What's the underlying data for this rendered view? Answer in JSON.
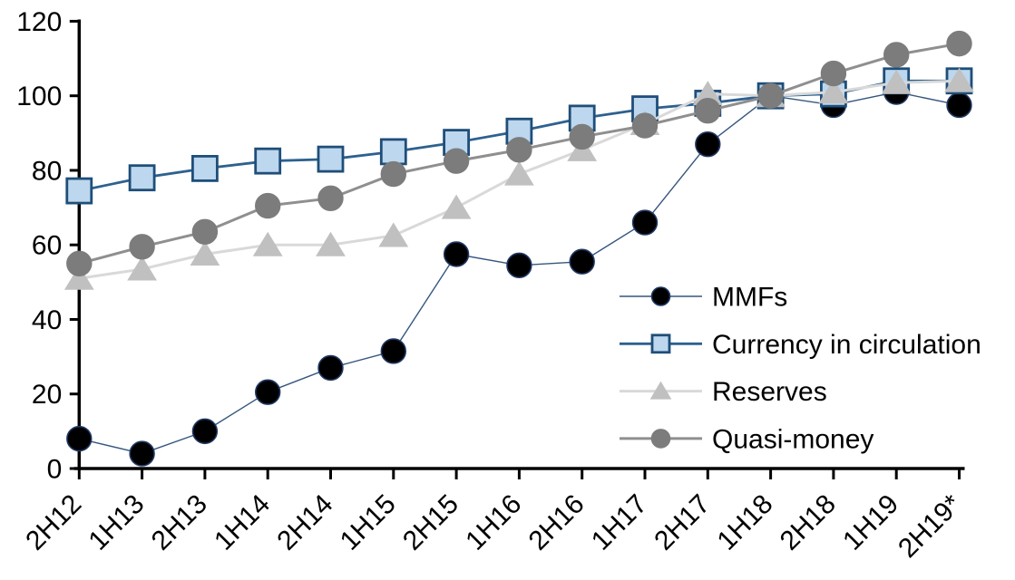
{
  "chart_data": {
    "type": "line",
    "title": "",
    "xlabel": "",
    "ylabel": "",
    "grid": false,
    "ylim": [
      0,
      120
    ],
    "yticks": [
      0,
      20,
      40,
      60,
      80,
      100,
      120
    ],
    "ytick_labels": [
      "0",
      "20",
      "40",
      "60",
      "80",
      "100",
      "120"
    ],
    "categories": [
      "2H12",
      "1H13",
      "2H13",
      "1H14",
      "2H14",
      "1H15",
      "2H15",
      "1H16",
      "2H16",
      "1H17",
      "2H17",
      "1H18",
      "2H18",
      "1H19",
      "2H19*"
    ],
    "legend_position": "inside-center-right",
    "axis_color": "#000000",
    "background_color": "#ffffff",
    "series": [
      {
        "name": "MMFs",
        "marker": "circle",
        "marker_fill": "#000000",
        "marker_stroke": "#1F3864",
        "line_color": "#35567E",
        "line_width": 1.4,
        "values": [
          8,
          4,
          10,
          20.5,
          27,
          31.5,
          57.5,
          54.5,
          55.5,
          66,
          87,
          100,
          97.5,
          101,
          97.5
        ]
      },
      {
        "name": "Currency in circulation",
        "marker": "square",
        "marker_fill": "#BDD7EE",
        "marker_stroke": "#1F4E79",
        "line_color": "#2D618F",
        "line_width": 2.8,
        "values": [
          74.5,
          78,
          80.5,
          82.5,
          83,
          85,
          87.5,
          90.5,
          94,
          96.5,
          98,
          100,
          100.5,
          104,
          104
        ]
      },
      {
        "name": "Reserves",
        "marker": "triangle",
        "marker_fill": "#C0C0C0",
        "marker_stroke": "#C0C0C0",
        "line_color": "#D9D9D9",
        "line_width": 3,
        "values": [
          51,
          53.5,
          57.5,
          60,
          60,
          62.5,
          70,
          79,
          85.5,
          92.5,
          100.5,
          100,
          101,
          103.5,
          104
        ]
      },
      {
        "name": "Quasi-money",
        "marker": "circle",
        "marker_fill": "#7C7C7C",
        "marker_stroke": "#7C7C7C",
        "line_color": "#8F8F8F",
        "line_width": 3,
        "values": [
          55,
          59.5,
          63.5,
          70.5,
          72.5,
          79,
          82.5,
          85.5,
          89,
          92,
          96,
          100,
          106,
          111,
          114
        ]
      }
    ]
  }
}
